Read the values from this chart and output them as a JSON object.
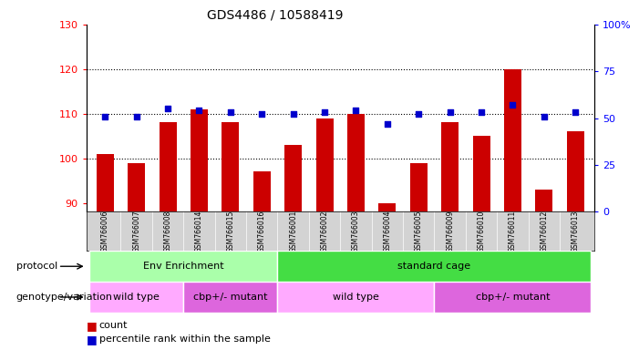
{
  "title": "GDS4486 / 10588419",
  "samples": [
    "GSM766006",
    "GSM766007",
    "GSM766008",
    "GSM766014",
    "GSM766015",
    "GSM766016",
    "GSM766001",
    "GSM766002",
    "GSM766003",
    "GSM766004",
    "GSM766005",
    "GSM766009",
    "GSM766010",
    "GSM766011",
    "GSM766012",
    "GSM766013"
  ],
  "counts": [
    101,
    99,
    108,
    111,
    108,
    97,
    103,
    109,
    110,
    90,
    99,
    108,
    105,
    120,
    93,
    106
  ],
  "percentiles": [
    51,
    51,
    55,
    54,
    53,
    52,
    52,
    53,
    54,
    47,
    52,
    53,
    53,
    57,
    51,
    53
  ],
  "ylim_left": [
    88,
    130
  ],
  "ylim_right": [
    0,
    100
  ],
  "yticks_left": [
    90,
    100,
    110,
    120,
    130
  ],
  "yticks_right": [
    0,
    25,
    50,
    75,
    100
  ],
  "bar_color": "#cc0000",
  "dot_color": "#0000cc",
  "protocol_groups": [
    {
      "label": "Env Enrichment",
      "start": 0,
      "end": 5,
      "color": "#aaffaa"
    },
    {
      "label": "standard cage",
      "start": 6,
      "end": 15,
      "color": "#44dd44"
    }
  ],
  "genotype_groups": [
    {
      "label": "wild type",
      "start": 0,
      "end": 2,
      "color": "#ffaaff"
    },
    {
      "label": "cbp+/- mutant",
      "start": 3,
      "end": 5,
      "color": "#dd66dd"
    },
    {
      "label": "wild type",
      "start": 6,
      "end": 10,
      "color": "#ffaaff"
    },
    {
      "label": "cbp+/- mutant",
      "start": 11,
      "end": 15,
      "color": "#dd66dd"
    }
  ]
}
